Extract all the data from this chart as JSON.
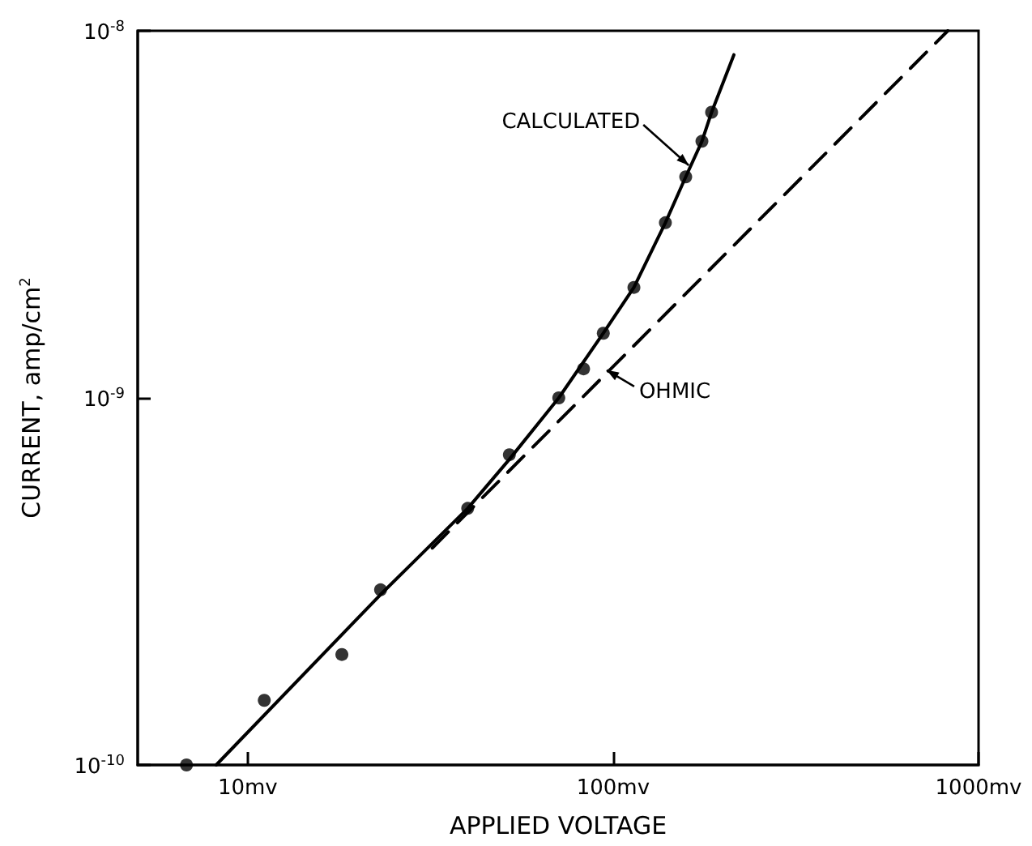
{
  "chart_data": {
    "type": "scatter",
    "xlabel": "APPLIED VOLTAGE",
    "ylabel": "CURRENT, amp/cm$^{2}$",
    "log": "xy",
    "grid": false,
    "marker": "circle",
    "xlim": [
      5,
      1000
    ],
    "xticks": [
      {
        "value": 10,
        "label": "10mv"
      },
      {
        "value": 100,
        "label": "100mv"
      },
      {
        "value": 1000,
        "label": "1000mv"
      }
    ],
    "ylim": [
      1e-10,
      1e-08
    ],
    "yticks": [
      {
        "value": 1e-10,
        "label": "10$^{-10}$"
      },
      {
        "value": 1e-09,
        "label": "10$^{-9}$"
      },
      {
        "value": 1e-08,
        "label": "10$^{-8}$"
      }
    ],
    "series": [
      {
        "color": "#000000",
        "x": [
          6.8,
          11.1,
          18.1,
          23.1,
          40,
          52,
          71,
          83,
          94,
          114,
          139,
          158,
          175,
          186
        ],
        "values": [
          1e-10,
          1.5e-10,
          2e-10,
          3e-10,
          5e-10,
          7e-10,
          1e-09,
          1.2e-09,
          1.5e-09,
          2e-09,
          3e-09,
          4e-09,
          5e-09,
          6e-09
        ]
      },
      {
        "type": "line",
        "color": "#000000",
        "line_style": "solid",
        "marker": "none",
        "x": [
          8.2,
          23,
          40,
          52,
          71,
          94,
          114,
          139,
          158,
          175,
          186,
          214
        ],
        "values": [
          1e-10,
          2.9e-10,
          5e-10,
          6.8e-10,
          1e-09,
          1.5e-09,
          2e-09,
          3e-09,
          4e-09,
          5e-09,
          6e-09,
          8.6e-09
        ]
      },
      {
        "type": "line",
        "color": "#000000",
        "line_style": "dashed",
        "marker": "none",
        "x": [
          32,
          824
        ],
        "values": [
          3.9e-10,
          1e-08
        ]
      }
    ],
    "annotations": [
      {
        "text": "CALCULATED",
        "x": 161,
        "y": 4.3e-09
      },
      {
        "text": "OHMIC",
        "x": 96,
        "y": 1.19e-09
      }
    ]
  }
}
